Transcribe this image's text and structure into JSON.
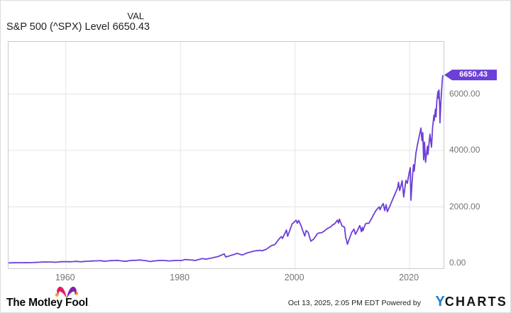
{
  "header": {
    "title": "S&P 500 (^SPX) Level",
    "col_label": "VAL",
    "value": "6650.43"
  },
  "chart_data": {
    "type": "line",
    "title": "S&P 500 (^SPX) Level",
    "legend_position": "none",
    "grid": true,
    "x_range": [
      1950,
      2025.93
    ],
    "y_top_value": 7850,
    "y_bottom_value": -175,
    "x_ticks": [
      {
        "year": 1960,
        "label": "1960"
      },
      {
        "year": 1980,
        "label": "1980"
      },
      {
        "year": 2000,
        "label": "2000"
      },
      {
        "year": 2020,
        "label": "2020"
      }
    ],
    "y_ticks": [
      {
        "value": 6000,
        "label": "6000.00",
        "grid": true
      },
      {
        "value": 4000,
        "label": "4000.00",
        "grid": true
      },
      {
        "value": 2000,
        "label": "2000.00",
        "grid": true
      },
      {
        "value": 0,
        "label": "0.00",
        "grid": false
      }
    ],
    "last_point": [
      2025.78,
      6650.43
    ],
    "last_value_label": "6650.43",
    "series": [
      {
        "name": "S&P 500 (^SPX) Level",
        "color": "#6C3FD6",
        "points": [
          [
            1950.0,
            17
          ],
          [
            1950.5,
            19
          ],
          [
            1951,
            21.5
          ],
          [
            1952,
            24
          ],
          [
            1953,
            25
          ],
          [
            1953.7,
            23
          ],
          [
            1954,
            26
          ],
          [
            1955,
            36
          ],
          [
            1955.8,
            45
          ],
          [
            1956.6,
            47
          ],
          [
            1957.6,
            49
          ],
          [
            1957.9,
            40
          ],
          [
            1958.5,
            45
          ],
          [
            1959,
            56
          ],
          [
            1959.6,
            60
          ],
          [
            1960.8,
            56
          ],
          [
            1961.9,
            72
          ],
          [
            1962.5,
            54
          ],
          [
            1963,
            63
          ],
          [
            1964,
            77
          ],
          [
            1965,
            87
          ],
          [
            1966.1,
            93
          ],
          [
            1966.75,
            74
          ],
          [
            1967.7,
            95
          ],
          [
            1968.9,
            107
          ],
          [
            1969.5,
            92
          ],
          [
            1970.4,
            72
          ],
          [
            1971.3,
            101
          ],
          [
            1972,
            108
          ],
          [
            1972.95,
            119
          ],
          [
            1973.5,
            104
          ],
          [
            1974,
            94
          ],
          [
            1974.75,
            63
          ],
          [
            1975.5,
            90
          ],
          [
            1976.7,
            105
          ],
          [
            1978.2,
            87
          ],
          [
            1979,
            101
          ],
          [
            1980.2,
            102
          ],
          [
            1980.9,
            140
          ],
          [
            1981.7,
            122
          ],
          [
            1982.6,
            102
          ],
          [
            1983.8,
            170
          ],
          [
            1984.5,
            150
          ],
          [
            1985.9,
            210
          ],
          [
            1986.7,
            250
          ],
          [
            1987.65,
            336
          ],
          [
            1987.9,
            225
          ],
          [
            1988.5,
            260
          ],
          [
            1989.95,
            355
          ],
          [
            1990.75,
            296
          ],
          [
            1991.9,
            385
          ],
          [
            1992.9,
            435
          ],
          [
            1993.9,
            465
          ],
          [
            1994.3,
            445
          ],
          [
            1995,
            500
          ],
          [
            1996,
            640
          ],
          [
            1996.5,
            670
          ],
          [
            1997.6,
            950
          ],
          [
            1997.8,
            880
          ],
          [
            1998.5,
            1180
          ],
          [
            1998.7,
            960
          ],
          [
            1999.5,
            1400
          ],
          [
            2000.2,
            1527
          ],
          [
            2000.4,
            1420
          ],
          [
            2000.65,
            1520
          ],
          [
            2001.1,
            1320
          ],
          [
            2001.7,
            966
          ],
          [
            2001.95,
            1160
          ],
          [
            2002.3,
            1100
          ],
          [
            2002.75,
            785
          ],
          [
            2003.2,
            850
          ],
          [
            2003.9,
            1050
          ],
          [
            2004.8,
            1100
          ],
          [
            2005.9,
            1260
          ],
          [
            2006.9,
            1400
          ],
          [
            2007.4,
            1530
          ],
          [
            2007.6,
            1430
          ],
          [
            2007.75,
            1565
          ],
          [
            2008.2,
            1330
          ],
          [
            2008.65,
            1280
          ],
          [
            2008.85,
            900
          ],
          [
            2008.95,
            870
          ],
          [
            2009.15,
            677
          ],
          [
            2009.9,
            1100
          ],
          [
            2010.3,
            1210
          ],
          [
            2010.55,
            1030
          ],
          [
            2011.3,
            1340
          ],
          [
            2011.6,
            1120
          ],
          [
            2011.75,
            1280
          ],
          [
            2011.85,
            1160
          ],
          [
            2012.3,
            1400
          ],
          [
            2012.9,
            1420
          ],
          [
            2013.9,
            1800
          ],
          [
            2014.7,
            2000
          ],
          [
            2014.85,
            1900
          ],
          [
            2015.4,
            2120
          ],
          [
            2015.65,
            1870
          ],
          [
            2015.9,
            2080
          ],
          [
            2016.12,
            1830
          ],
          [
            2016.9,
            2200
          ],
          [
            2017.9,
            2670
          ],
          [
            2018.07,
            2872
          ],
          [
            2018.27,
            2580
          ],
          [
            2018.7,
            2930
          ],
          [
            2018.97,
            2350
          ],
          [
            2019.35,
            2940
          ],
          [
            2019.6,
            2840
          ],
          [
            2019.95,
            3230
          ],
          [
            2020.12,
            3386
          ],
          [
            2020.23,
            2237
          ],
          [
            2020.45,
            2950
          ],
          [
            2020.68,
            3500
          ],
          [
            2020.8,
            3270
          ],
          [
            2021.1,
            3900
          ],
          [
            2021.35,
            4180
          ],
          [
            2021.7,
            4530
          ],
          [
            2021.98,
            4797
          ],
          [
            2022.15,
            4350
          ],
          [
            2022.3,
            4630
          ],
          [
            2022.45,
            3670
          ],
          [
            2022.6,
            4300
          ],
          [
            2022.78,
            3580
          ],
          [
            2023.1,
            4150
          ],
          [
            2023.2,
            3860
          ],
          [
            2023.55,
            4580
          ],
          [
            2023.82,
            4120
          ],
          [
            2024.0,
            4770
          ],
          [
            2024.25,
            5250
          ],
          [
            2024.3,
            5060
          ],
          [
            2024.52,
            5470
          ],
          [
            2024.6,
            5190
          ],
          [
            2024.75,
            5760
          ],
          [
            2024.95,
            6090
          ],
          [
            2025.05,
            5850
          ],
          [
            2025.13,
            6147
          ],
          [
            2025.25,
            5580
          ],
          [
            2025.3,
            4982
          ],
          [
            2025.45,
            5650
          ],
          [
            2025.55,
            6000
          ],
          [
            2025.65,
            6300
          ],
          [
            2025.7,
            6460
          ],
          [
            2025.78,
            6650.43
          ]
        ]
      }
    ]
  },
  "footer": {
    "brand": "The Motley Fool",
    "brand_suffix": ".",
    "timestamp": "Oct 13, 2025, 2:05 PM EDT",
    "powered_by": "Powered by",
    "ycharts_y": "Y",
    "ycharts_rest": "CHARTS"
  },
  "icons": {
    "jester-hat-icon": "Motley Fool jester hat (pink + purple with gold bells)"
  },
  "colors": {
    "accent": "#6C3FD6",
    "grid": "#e4e4e4",
    "plot_border": "#cccccc",
    "axis_text": "#757575",
    "title_text": "#1f1f1f",
    "footer_text": "#222222",
    "ycharts_blue": "#1B7CD6",
    "fool_pink": "#E51B5D",
    "fool_purple": "#7E22A8",
    "fool_gold": "#F9A11B"
  }
}
